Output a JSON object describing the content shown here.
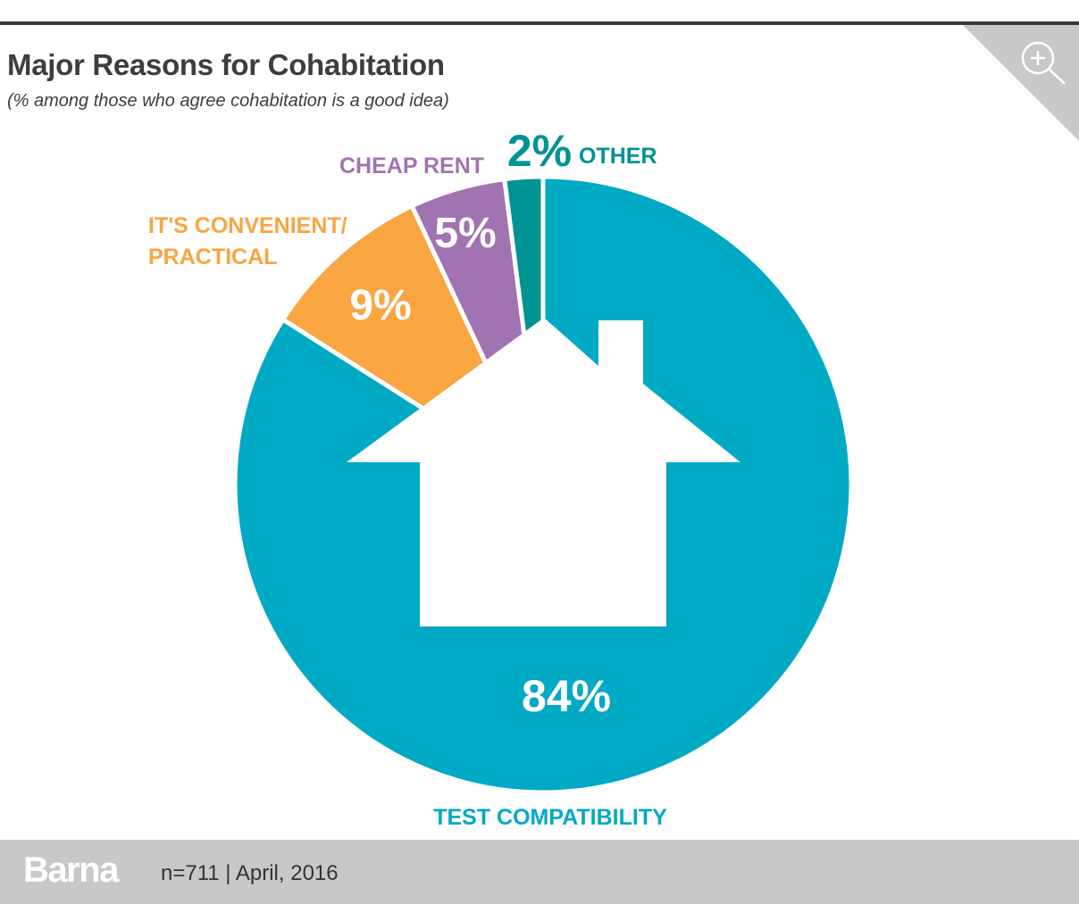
{
  "header": {
    "title": "Major Reasons for Cohabitation",
    "subtitle": "(% among those who agree cohabitation is a good idea)"
  },
  "corner": {
    "icon": "zoom-in-icon"
  },
  "chart_data": {
    "type": "pie",
    "title": "Major Reasons for Cohabitation",
    "subtitle": "(% among those who agree cohabitation is a good idea)",
    "slices": [
      {
        "key": "test",
        "label": "TEST COMPATIBILITY",
        "value": 84,
        "value_label": "84%",
        "color": "#00a9c4"
      },
      {
        "key": "convenient",
        "label": "IT'S CONVENIENT/ PRACTICAL",
        "label_lines": [
          "IT'S CONVENIENT/",
          "PRACTICAL"
        ],
        "value": 9,
        "value_label": "9%",
        "color": "#f9a541"
      },
      {
        "key": "cheap",
        "label": "CHEAP RENT",
        "value": 5,
        "value_label": "5%",
        "color": "#a273b1"
      },
      {
        "key": "other",
        "label": "OTHER",
        "value": 2,
        "value_label": "2%",
        "color": "#009394"
      }
    ],
    "center_icon": "house-icon"
  },
  "footer": {
    "brand": "Barna",
    "meta": "n=711  |  April, 2016"
  },
  "colors": {
    "accent": "#00a9c4",
    "footer_bg": "#c8c8c9",
    "text": "#3d3d3d"
  }
}
